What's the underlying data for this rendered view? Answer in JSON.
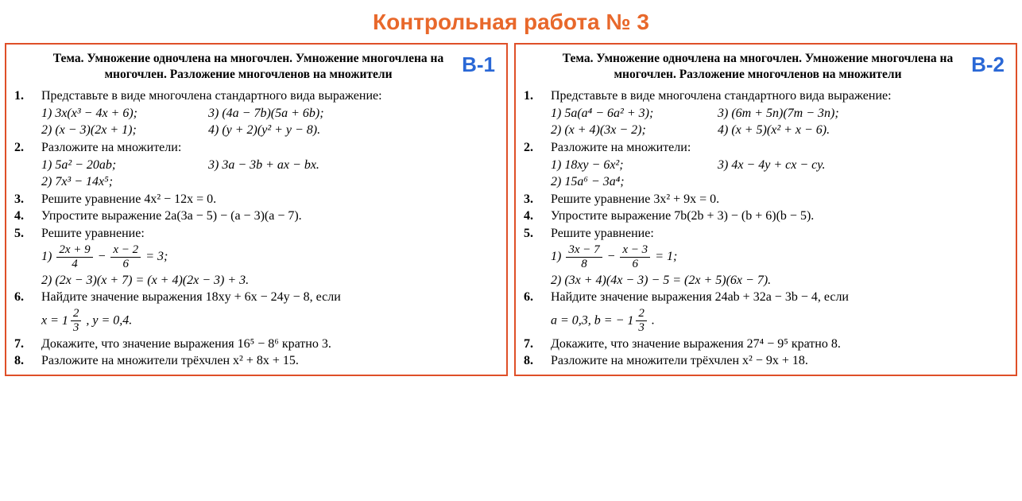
{
  "title": "Контрольная работа № 3",
  "title_color": "#e8682b",
  "border_color": "#df4f28",
  "badge_color": "#2a68d6",
  "text_color": "#000000",
  "theme_label": "Тема.",
  "theme_text": "Умножение одночлена на многочлен. Умножение многочлена на многочлен. Разложение многочленов на множители",
  "variants": [
    {
      "badge": "В-1",
      "tasks": {
        "t1": {
          "num": "1.",
          "text": "Представьте в виде многочлена стандартного вида выражение:",
          "s1a": "1) 3x(x³ − 4x + 6);",
          "s1b": "3) (4a − 7b)(5a + 6b);",
          "s2a": "2) (x − 3)(2x + 1);",
          "s2b": "4) (y + 2)(y² + y − 8)."
        },
        "t2": {
          "num": "2.",
          "text": "Разложите на множители:",
          "s1a": "1) 5a² − 20ab;",
          "s1b": "3) 3a − 3b + ax − bx.",
          "s2a": "2) 7x³ − 14x⁵;"
        },
        "t3": {
          "num": "3.",
          "text": "Решите уравнение 4x² − 12x = 0."
        },
        "t4": {
          "num": "4.",
          "text": "Упростите выражение 2a(3a − 5) − (a − 3)(a − 7)."
        },
        "t5": {
          "num": "5.",
          "text": "Решите уравнение:",
          "s1_pre": "1) ",
          "f1_num": "2x + 9",
          "f1_den": "4",
          "mid1": " − ",
          "f2_num": "x − 2",
          "f2_den": "6",
          "s1_post": " = 3;",
          "s2": "2) (2x − 3)(x + 7) = (x + 4)(2x − 3) + 3."
        },
        "t6": {
          "num": "6.",
          "text": "Найдите значение выражения 18xy + 6x − 24y − 8, если",
          "val_pre": "x = ",
          "mix_whole": "1",
          "mix_num": "2",
          "mix_den": "3",
          "val_post": " , y = 0,4."
        },
        "t7": {
          "num": "7.",
          "text": "Докажите, что значение выражения 16⁵ − 8⁶ кратно 3."
        },
        "t8": {
          "num": "8.",
          "text": "Разложите на множители трёхчлен x² + 8x + 15."
        }
      }
    },
    {
      "badge": "В-2",
      "tasks": {
        "t1": {
          "num": "1.",
          "text": "Представьте в виде многочлена стандартного вида выражение:",
          "s1a": "1) 5a(a⁴ − 6a² + 3);",
          "s1b": "3) (6m + 5n)(7m − 3n);",
          "s2a": "2) (x + 4)(3x − 2);",
          "s2b": "4) (x + 5)(x² + x − 6)."
        },
        "t2": {
          "num": "2.",
          "text": "Разложите на множители:",
          "s1a": "1) 18xy − 6x²;",
          "s1b": "3) 4x − 4y + cx − cy.",
          "s2a": "2) 15a⁶ − 3a⁴;"
        },
        "t3": {
          "num": "3.",
          "text": "Решите уравнение 3x² + 9x = 0."
        },
        "t4": {
          "num": "4.",
          "text": "Упростите выражение 7b(2b + 3) − (b + 6)(b − 5)."
        },
        "t5": {
          "num": "5.",
          "text": "Решите уравнение:",
          "s1_pre": "1) ",
          "f1_num": "3x − 7",
          "f1_den": "8",
          "mid1": " − ",
          "f2_num": "x − 3",
          "f2_den": "6",
          "s1_post": " = 1;",
          "s2": "2) (3x + 4)(4x − 3) − 5 = (2x + 5)(6x − 7)."
        },
        "t6": {
          "num": "6.",
          "text": "Найдите значение выражения 24ab + 32a − 3b − 4, если",
          "val_pre": "a = 0,3,  b = −",
          "mix_whole": "1",
          "mix_num": "2",
          "mix_den": "3",
          "val_post": " ."
        },
        "t7": {
          "num": "7.",
          "text": "Докажите, что значение выражения 27⁴ − 9⁵ кратно 8."
        },
        "t8": {
          "num": "8.",
          "text": "Разложите на множители трёхчлен x² − 9x + 18."
        }
      }
    }
  ]
}
